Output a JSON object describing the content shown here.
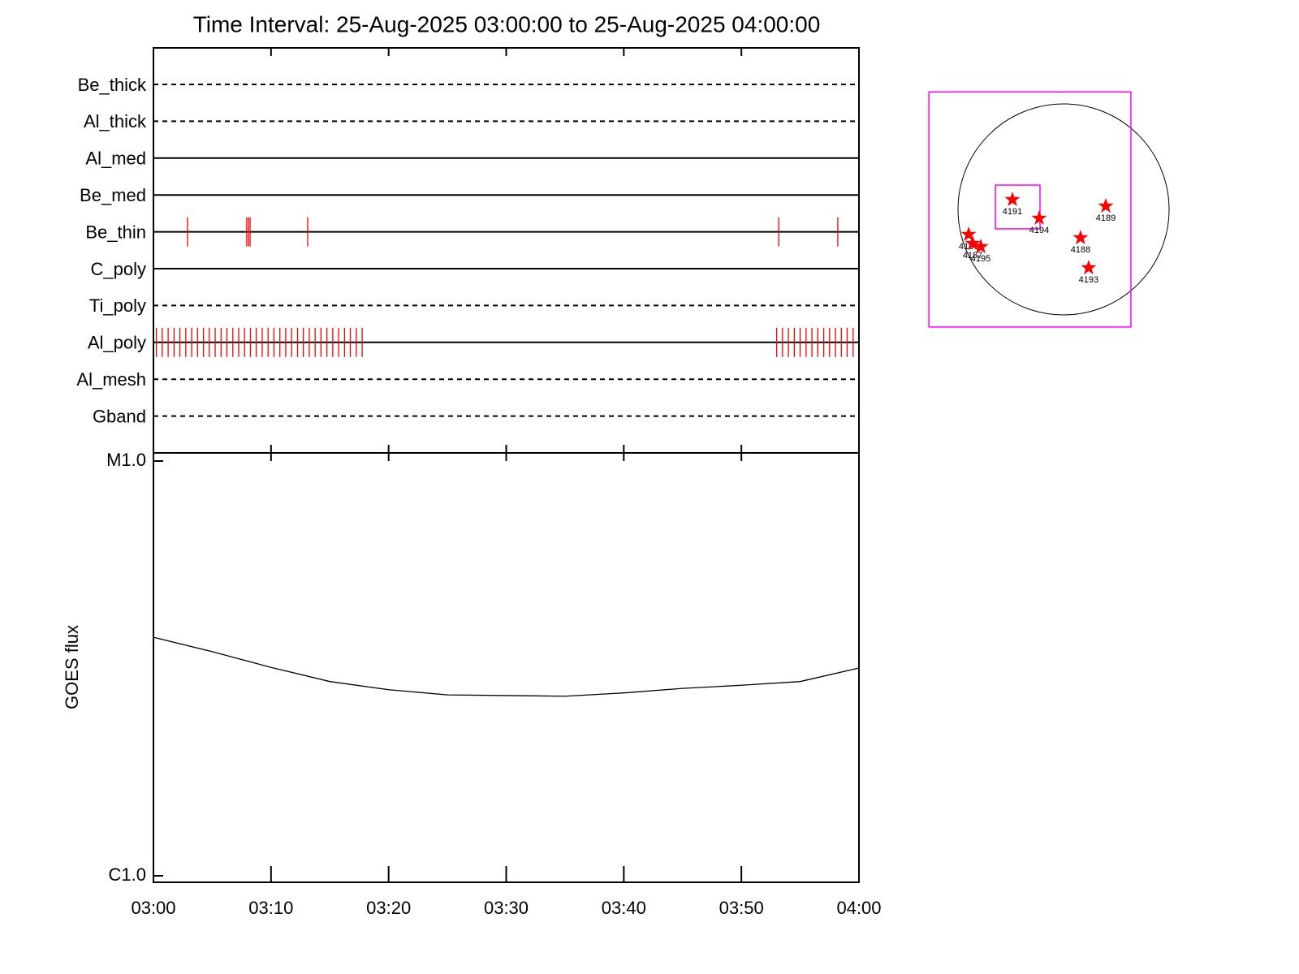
{
  "chart_data": [
    {
      "type": "timeline",
      "title": "Time Interval: 25-Aug-2025 03:00:00 to 25-Aug-2025 04:00:00",
      "categories": [
        "Be_thick",
        "Al_thick",
        "Al_med",
        "Be_med",
        "Be_thin",
        "C_poly",
        "Ti_poly",
        "Al_poly",
        "Al_mesh",
        "Gband"
      ],
      "line_styles": [
        "dashed",
        "dashed",
        "solid",
        "solid",
        "solid",
        "solid",
        "dashed",
        "solid",
        "dashed",
        "dashed"
      ],
      "event_color": "#ff0000",
      "events": [
        [],
        [],
        [],
        [],
        [
          "03:02:54",
          "03:07:56",
          "03:08:05",
          "03:08:13",
          "03:13:07",
          "03:53:11",
          "03:58:12"
        ],
        [],
        [],
        [
          "03:00:15",
          "03:00:45",
          "03:01:15",
          "03:01:45",
          "03:02:15",
          "03:02:45",
          "03:03:15",
          "03:03:45",
          "03:04:15",
          "03:04:45",
          "03:05:15",
          "03:05:45",
          "03:06:15",
          "03:06:45",
          "03:07:15",
          "03:07:45",
          "03:08:15",
          "03:08:45",
          "03:09:15",
          "03:09:45",
          "03:10:15",
          "03:10:45",
          "03:11:15",
          "03:11:45",
          "03:12:15",
          "03:12:45",
          "03:13:15",
          "03:13:45",
          "03:14:15",
          "03:14:45",
          "03:15:15",
          "03:15:45",
          "03:16:15",
          "03:16:45",
          "03:17:15",
          "03:17:45",
          "03:53:00",
          "03:53:30",
          "03:54:00",
          "03:54:30",
          "03:55:00",
          "03:55:30",
          "03:56:00",
          "03:56:30",
          "03:57:00",
          "03:57:30",
          "03:58:00",
          "03:58:30",
          "03:59:00",
          "03:59:30"
        ],
        [],
        []
      ]
    },
    {
      "type": "line",
      "y_label": "GOES flux",
      "x": [
        "03:00",
        "03:05",
        "03:10",
        "03:15",
        "03:20",
        "03:25",
        "03:30",
        "03:35",
        "03:40",
        "03:45",
        "03:50",
        "03:55",
        "04:00"
      ],
      "values": [
        3.76e-06,
        3.47e-06,
        3.18e-06,
        2.94e-06,
        2.81e-06,
        2.73e-06,
        2.72e-06,
        2.71e-06,
        2.76e-06,
        2.83e-06,
        2.88e-06,
        2.94e-06,
        3.17e-06
      ],
      "color": "#000000",
      "log_scale": true,
      "xlim": [
        "03:00",
        "04:00"
      ],
      "xticks": [
        "03:00",
        "03:10",
        "03:20",
        "03:30",
        "03:40",
        "03:50",
        "04:00"
      ],
      "ylim": [
        1e-06,
        1e-05
      ],
      "yticks": [
        {
          "value": 1e-06,
          "label": "C1.0"
        },
        {
          "value": 1e-05,
          "label": "M1.0"
        }
      ]
    },
    {
      "type": "map",
      "solar_radius": 950,
      "labels": [
        "4191",
        "4194",
        "4189",
        "4188",
        "4193",
        "4186",
        "4187",
        "4195"
      ],
      "x": [
        -460,
        -219,
        380,
        153,
        226,
        -854,
        -818,
        -745
      ],
      "values": [
        88,
        -80,
        29,
        -256,
        -526,
        -226,
        -307,
        -336
      ],
      "color": "#ff0000",
      "fov_color": "#ff00ff",
      "fov_boxes": [
        {
          "x": [
            -1212,
            606
          ],
          "y": [
            -1059,
            1058
          ]
        },
        {
          "x": [
            -613,
            -212
          ],
          "y": [
            -175,
            219
          ]
        }
      ]
    }
  ]
}
